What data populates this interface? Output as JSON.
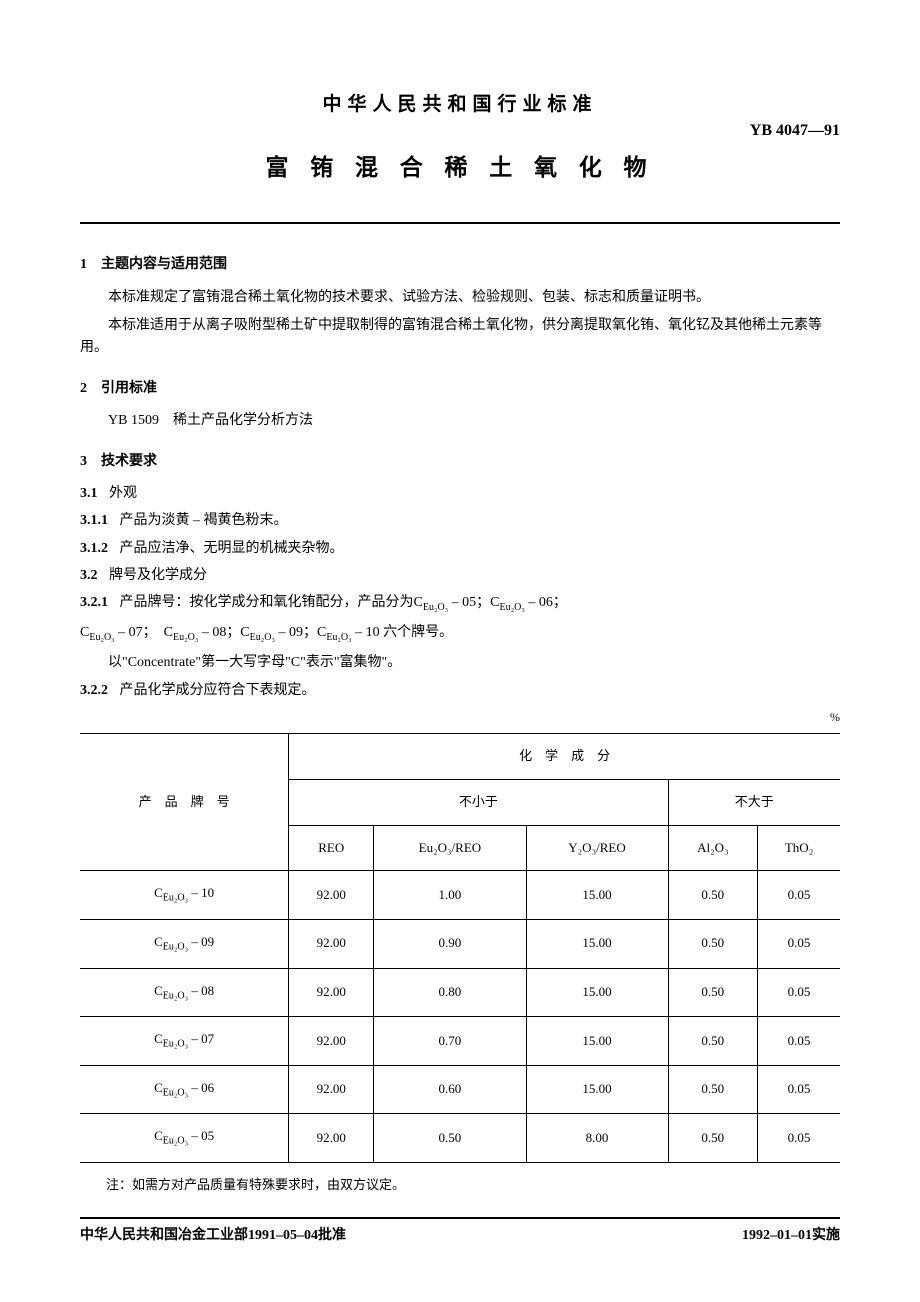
{
  "header": {
    "pretitle": "中华人民共和国行业标准",
    "standard_code": "YB 4047—91",
    "main_title": "富 铕 混 合 稀 土 氧 化 物"
  },
  "s1": {
    "head": "1　主题内容与适用范围",
    "p1": "本标准规定了富铕混合稀土氧化物的技术要求、试验方法、检验规则、包装、标志和质量证明书。",
    "p2": "本标准适用于从离子吸附型稀土矿中提取制得的富铕混合稀土氧化物，供分离提取氧化铕、氧化钇及其他稀土元素等用。"
  },
  "s2": {
    "head": "2　引用标准",
    "ref": "YB 1509　稀土产品化学分析方法"
  },
  "s3": {
    "head": "3　技术要求",
    "c31": "3.1",
    "c31t": "外观",
    "c311": "3.1.1",
    "c311t": "产品为淡黄 – 褐黄色粉末。",
    "c312": "3.1.2",
    "c312t": "产品应洁净、无明显的机械夹杂物。",
    "c32": "3.2",
    "c32t": "牌号及化学成分",
    "c321": "3.2.1",
    "c321t_a": "产品牌号：按化学成分和氧化铕配分，产品分为C",
    "c321t_b": " – 05；C",
    "c321t_c": " – 06；",
    "c321_line2_a": "C",
    "c321_line2_b": " – 07；　C",
    "c321_line2_c": " – 08；C",
    "c321_line2_d": " – 09；C",
    "c321_line2_e": " – 10 六个牌号。",
    "c321_line3": "以\"Concentrate\"第一大写字母\"C\"表示\"富集物\"。",
    "c322": "3.2.2",
    "c322t": "产品化学成分应符合下表规定。",
    "eu_sub": "Eu₂O₃"
  },
  "table": {
    "unit": "%",
    "col_brand": "产　品　牌　号",
    "col_chem": "化　学　成　分",
    "col_ge": "不小于",
    "col_le": "不大于",
    "h_reo": "REO",
    "h_eu": "Eu₂O₃/REO",
    "h_y": "Y₂O₃/REO",
    "h_al": "Al₂O₃",
    "h_th": "ThO₂",
    "rows": [
      {
        "brand_pre": "C",
        "brand_suf": " – 10",
        "reo": "92.00",
        "eu": "1.00",
        "y": "15.00",
        "al": "0.50",
        "th": "0.05"
      },
      {
        "brand_pre": "C",
        "brand_suf": " – 09",
        "reo": "92.00",
        "eu": "0.90",
        "y": "15.00",
        "al": "0.50",
        "th": "0.05"
      },
      {
        "brand_pre": "C",
        "brand_suf": " – 08",
        "reo": "92.00",
        "eu": "0.80",
        "y": "15.00",
        "al": "0.50",
        "th": "0.05"
      },
      {
        "brand_pre": "C",
        "brand_suf": " – 07",
        "reo": "92.00",
        "eu": "0.70",
        "y": "15.00",
        "al": "0.50",
        "th": "0.05"
      },
      {
        "brand_pre": "C",
        "brand_suf": " – 06",
        "reo": "92.00",
        "eu": "0.60",
        "y": "15.00",
        "al": "0.50",
        "th": "0.05"
      },
      {
        "brand_pre": "C",
        "brand_suf": " – 05",
        "reo": "92.00",
        "eu": "0.50",
        "y": "8.00",
        "al": "0.50",
        "th": "0.05"
      }
    ],
    "note": "注：如需方对产品质量有特殊要求时，由双方议定。"
  },
  "footer": {
    "left": "中华人民共和国冶金工业部1991–05–04批准",
    "right": "1992–01–01实施"
  }
}
